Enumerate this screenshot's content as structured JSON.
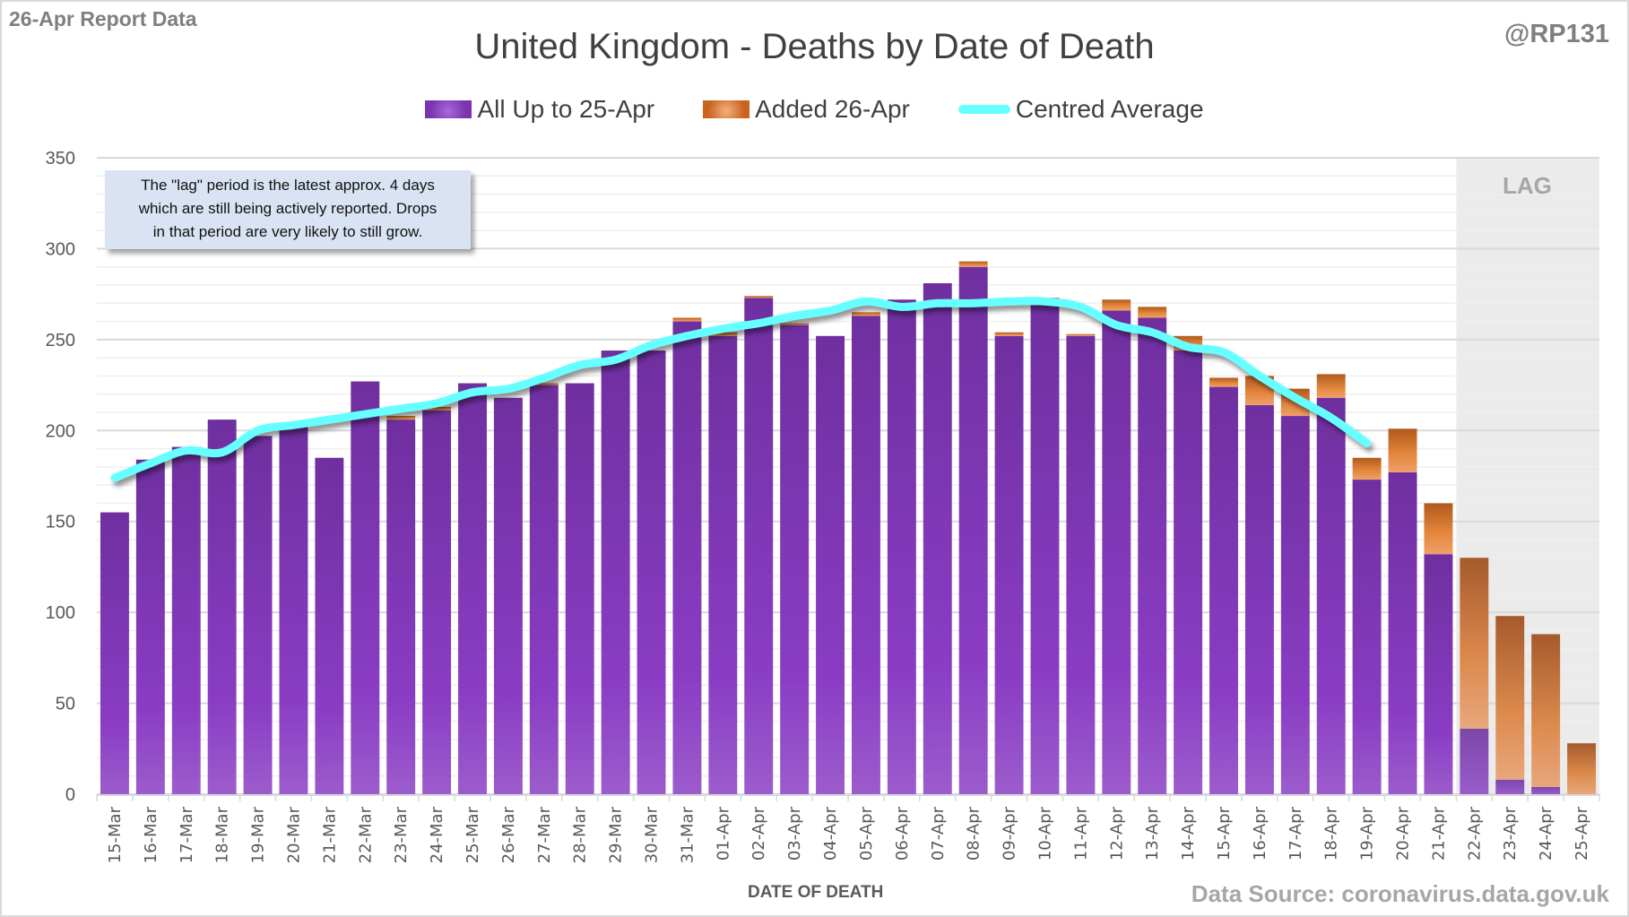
{
  "header": {
    "report_tag": "26-Apr Report Data",
    "handle": "@RP131"
  },
  "note": {
    "lines": [
      "The \"lag\" period is the latest approx. 4 days",
      "which are still being actively reported.  Drops",
      "in that period are very likely to still grow."
    ]
  },
  "lag_label": "LAG",
  "footer": {
    "source": "Data Source: coronavirus.data.gov.uk"
  },
  "colors": {
    "purple": "#7a34b0",
    "orange": "#d2772f",
    "average": "#66ffff",
    "lag_shade": "#ebebeb",
    "grid": "#d9d9d9"
  },
  "chart_data": {
    "type": "bar",
    "stacked": true,
    "title": "United Kingdom - Deaths by Date of Death",
    "xlabel": "DATE OF DEATH",
    "ylabel": "",
    "ylim": [
      0,
      350
    ],
    "yticks": [
      0,
      50,
      100,
      150,
      200,
      250,
      300,
      350
    ],
    "grid": true,
    "legend_position": "top-center",
    "categories": [
      "15-Mar",
      "16-Mar",
      "17-Mar",
      "18-Mar",
      "19-Mar",
      "20-Mar",
      "21-Mar",
      "22-Mar",
      "23-Mar",
      "24-Mar",
      "25-Mar",
      "26-Mar",
      "27-Mar",
      "28-Mar",
      "29-Mar",
      "30-Mar",
      "31-Mar",
      "01-Apr",
      "02-Apr",
      "03-Apr",
      "04-Apr",
      "05-Apr",
      "06-Apr",
      "07-Apr",
      "08-Apr",
      "09-Apr",
      "10-Apr",
      "11-Apr",
      "12-Apr",
      "13-Apr",
      "14-Apr",
      "15-Apr",
      "16-Apr",
      "17-Apr",
      "18-Apr",
      "19-Apr",
      "20-Apr",
      "21-Apr",
      "22-Apr",
      "23-Apr",
      "24-Apr",
      "25-Apr"
    ],
    "lag_categories": [
      "22-Apr",
      "23-Apr",
      "24-Apr",
      "25-Apr"
    ],
    "series": [
      {
        "name": "All Up to 25-Apr",
        "type": "bar",
        "values": [
          155,
          184,
          191,
          206,
          197,
          202,
          185,
          227,
          206,
          211,
          226,
          218,
          225,
          226,
          244,
          244,
          260,
          252,
          273,
          258,
          252,
          263,
          272,
          281,
          290,
          252,
          269,
          252,
          266,
          262,
          244,
          224,
          214,
          208,
          218,
          173,
          177,
          132,
          36,
          8,
          4,
          0
        ]
      },
      {
        "name": "Added 26-Apr",
        "type": "bar",
        "values": [
          0,
          0,
          0,
          0,
          0,
          0,
          0,
          0,
          2,
          2,
          0,
          0,
          1,
          0,
          0,
          0,
          2,
          2,
          1,
          1,
          0,
          2,
          0,
          0,
          3,
          2,
          4,
          1,
          6,
          6,
          8,
          5,
          16,
          15,
          13,
          12,
          24,
          28,
          94,
          90,
          84,
          28
        ]
      },
      {
        "name": "Centred Average",
        "type": "line",
        "values": [
          174,
          182,
          189,
          188,
          200,
          203,
          206,
          209,
          212,
          215,
          221,
          223,
          229,
          236,
          239,
          247,
          252,
          256,
          259,
          263,
          266,
          271,
          268,
          270,
          270,
          271,
          271,
          268,
          258,
          254,
          246,
          243,
          230,
          218,
          207,
          193,
          null,
          null,
          null,
          null,
          null,
          null
        ]
      }
    ]
  }
}
